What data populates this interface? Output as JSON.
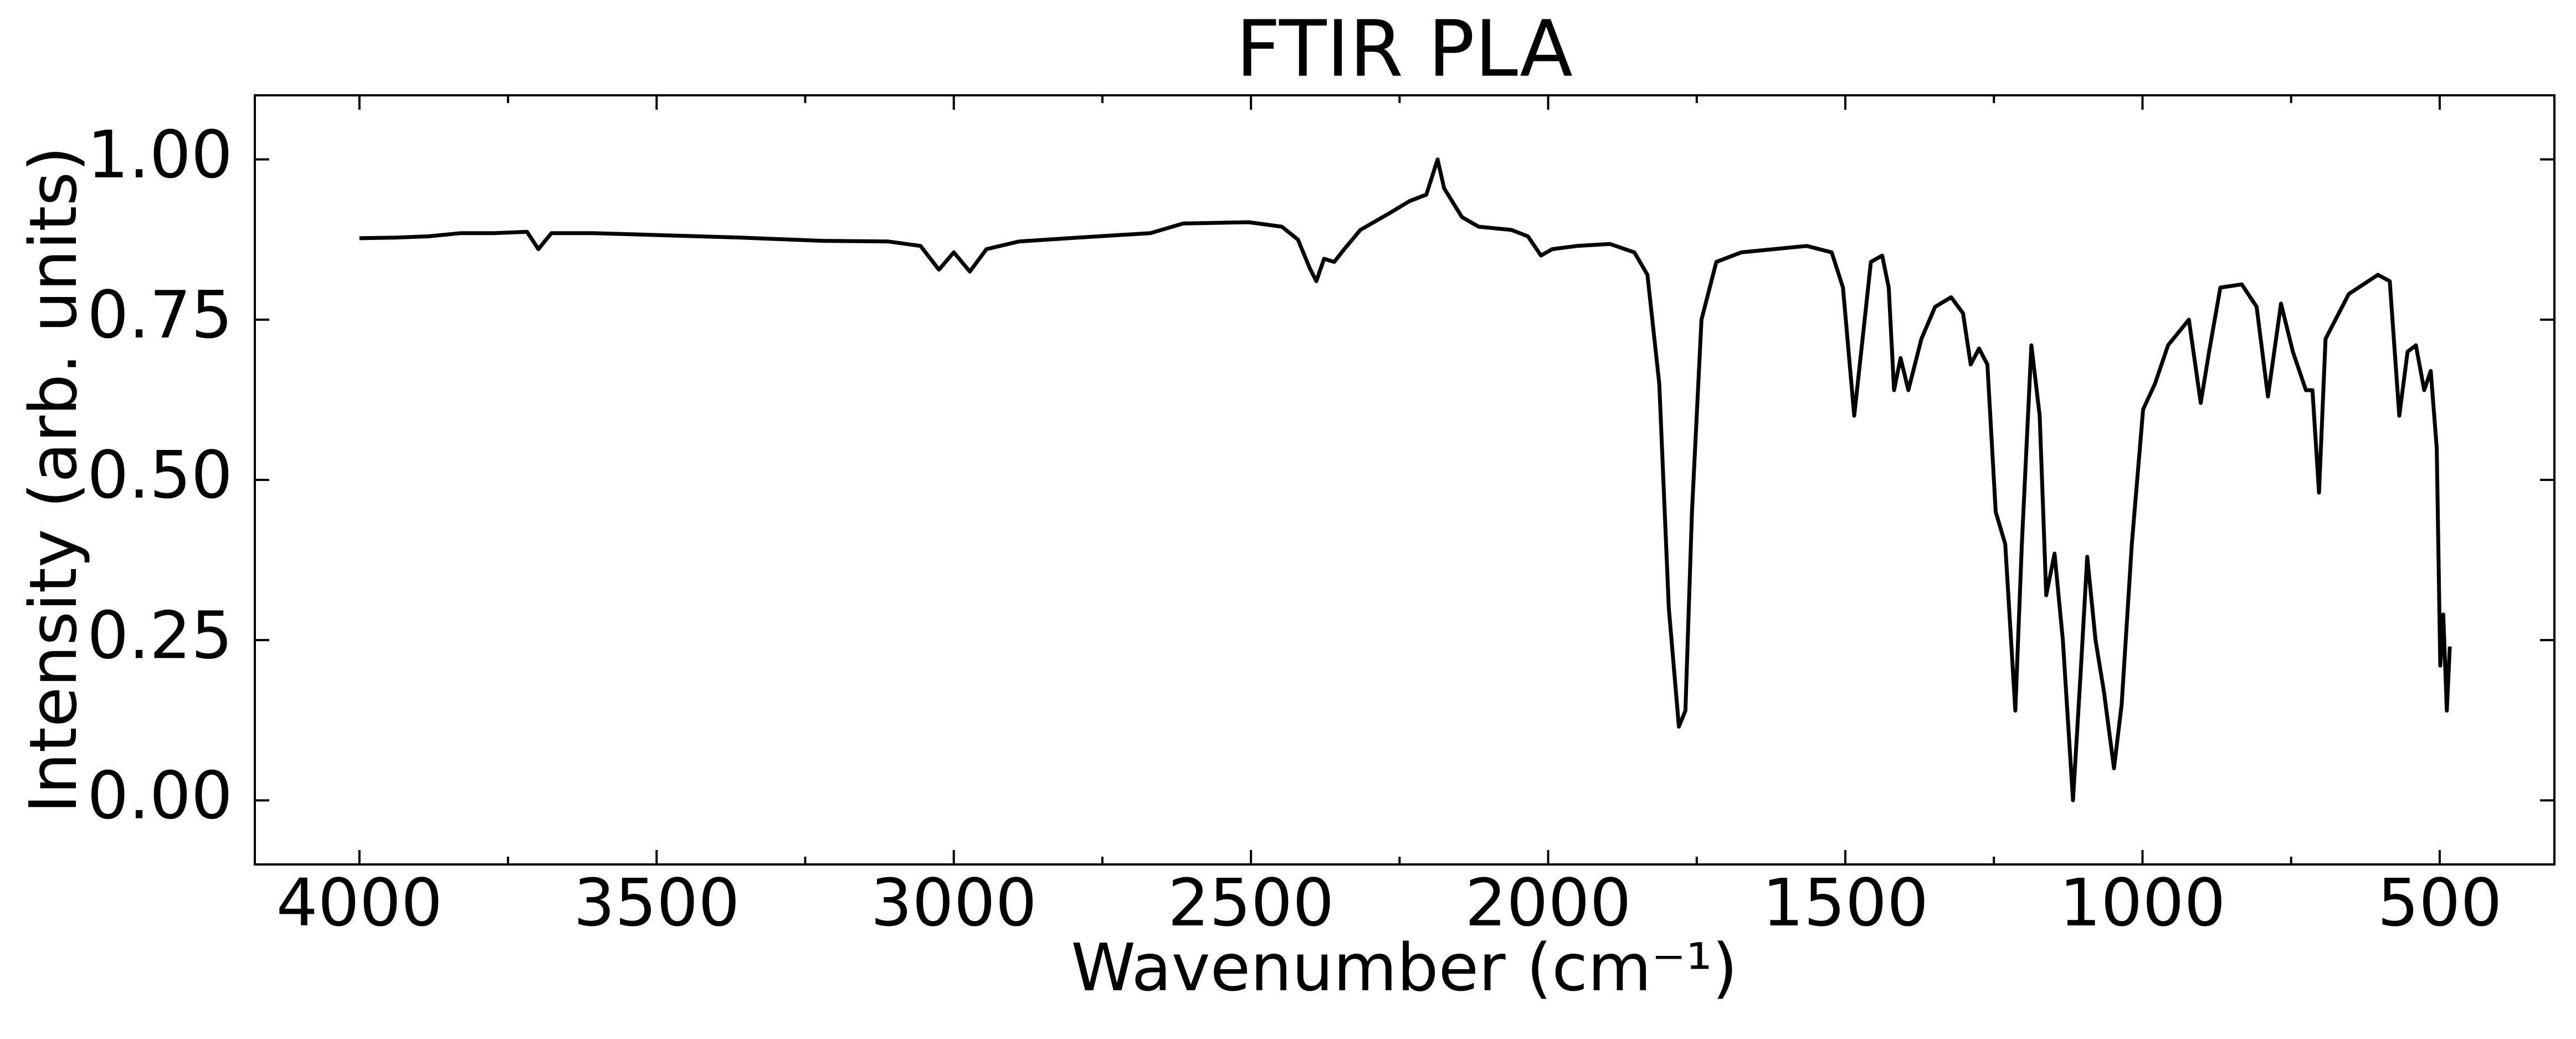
{
  "chart_data": {
    "type": "line",
    "title": "FTIR PLA",
    "xlabel": "Wavenumber (cm⁻¹)",
    "ylabel": "Intensity (arb. units)",
    "color": "#000000",
    "xlim": [
      4176,
      307
    ],
    "ylim": [
      -0.1,
      1.1
    ],
    "xticks": [
      4000,
      3500,
      3000,
      2500,
      2000,
      1500,
      1000,
      500
    ],
    "xminor_ticks": [
      3750,
      3250,
      2750,
      2250,
      1750,
      1250,
      750
    ],
    "yticks": [
      {
        "value": 0,
        "label": "0.00"
      },
      {
        "value": 0.25,
        "label": "0.25"
      },
      {
        "value": 0.5,
        "label": "0.50"
      },
      {
        "value": 0.75,
        "label": "0.75"
      },
      {
        "value": 1,
        "label": "1.00"
      }
    ],
    "x": [
      4000,
      3939,
      3884,
      3829,
      3774,
      3718,
      3699,
      3677,
      3608,
      3498,
      3359,
      3221,
      3111,
      3056,
      3025,
      3000,
      2973,
      2945,
      2890,
      2807,
      2669,
      2614,
      2504,
      2448,
      2421,
      2401,
      2390,
      2377,
      2360,
      2343,
      2316,
      2269,
      2233,
      2205,
      2186,
      2175,
      2145,
      2117,
      2062,
      2034,
      2012,
      1993,
      1951,
      1896,
      1855,
      1833,
      1813,
      1797,
      1780,
      1769,
      1758,
      1742,
      1717,
      1675,
      1620,
      1565,
      1523,
      1504,
      1485,
      1471,
      1457,
      1438,
      1427,
      1418,
      1407,
      1394,
      1372,
      1349,
      1322,
      1302,
      1289,
      1275,
      1261,
      1247,
      1231,
      1214,
      1203,
      1187,
      1173,
      1162,
      1148,
      1134,
      1117,
      1104,
      1093,
      1079,
      1065,
      1048,
      1035,
      1018,
      999,
      979,
      957,
      922,
      902,
      888,
      869,
      833,
      808,
      789,
      767,
      747,
      725,
      714,
      703,
      692,
      653,
      604,
      584,
      568,
      554,
      540,
      526,
      515,
      505,
      499,
      494,
      488,
      483
    ],
    "values": [
      0.877,
      0.878,
      0.88,
      0.885,
      0.885,
      0.887,
      0.86,
      0.885,
      0.885,
      0.882,
      0.878,
      0.873,
      0.872,
      0.865,
      0.828,
      0.855,
      0.825,
      0.86,
      0.872,
      0.877,
      0.885,
      0.9,
      0.902,
      0.895,
      0.875,
      0.83,
      0.81,
      0.845,
      0.84,
      0.86,
      0.89,
      0.915,
      0.935,
      0.945,
      1.0,
      0.955,
      0.91,
      0.895,
      0.89,
      0.88,
      0.85,
      0.86,
      0.865,
      0.868,
      0.855,
      0.82,
      0.65,
      0.3,
      0.115,
      0.14,
      0.45,
      0.75,
      0.84,
      0.855,
      0.86,
      0.865,
      0.855,
      0.8,
      0.6,
      0.72,
      0.84,
      0.85,
      0.8,
      0.64,
      0.69,
      0.64,
      0.72,
      0.77,
      0.785,
      0.76,
      0.68,
      0.705,
      0.68,
      0.45,
      0.4,
      0.14,
      0.4,
      0.71,
      0.6,
      0.32,
      0.385,
      0.25,
      0.0,
      0.2,
      0.38,
      0.25,
      0.17,
      0.05,
      0.15,
      0.4,
      0.61,
      0.65,
      0.71,
      0.75,
      0.62,
      0.7,
      0.8,
      0.805,
      0.77,
      0.63,
      0.775,
      0.7,
      0.64,
      0.64,
      0.48,
      0.72,
      0.79,
      0.82,
      0.81,
      0.6,
      0.7,
      0.71,
      0.64,
      0.67,
      0.55,
      0.21,
      0.29,
      0.14,
      0.24
    ],
    "ticks_inward": true,
    "mirror_ticks": true
  }
}
